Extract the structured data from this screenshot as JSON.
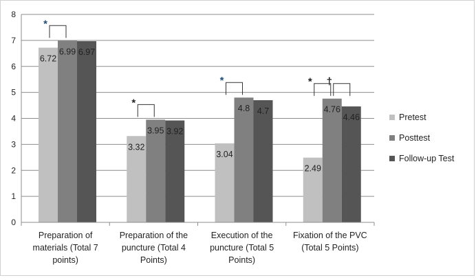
{
  "chart_data": {
    "type": "bar",
    "categories": [
      [
        "Preparation of",
        "materials (Total 7",
        "points)"
      ],
      [
        "Preparation of the",
        "puncture (Total 4",
        "Points)"
      ],
      [
        "Execution of the",
        "puncture (Total 5",
        "Points)"
      ],
      [
        "Fixation of the PVC",
        "(Total 5 Points)"
      ]
    ],
    "series": [
      {
        "name": "Pretest",
        "values": [
          6.72,
          3.32,
          3.04,
          2.49
        ],
        "labels": [
          "6.72",
          "3.32",
          "3.04",
          "2.49"
        ],
        "color": "#c0c0c0"
      },
      {
        "name": "Posttest",
        "values": [
          6.99,
          3.95,
          4.8,
          4.76
        ],
        "labels": [
          "6.99",
          "3.95",
          "4.8",
          "4.76"
        ],
        "color": "#808080"
      },
      {
        "name": "Follow-up Test",
        "values": [
          6.97,
          3.92,
          4.7,
          4.46
        ],
        "labels": [
          "6.97",
          "3.92",
          "4.7",
          "4.46"
        ],
        "color": "#555555"
      }
    ],
    "ylim": [
      0,
      8
    ],
    "yticks": [
      "0",
      "1",
      "2",
      "3",
      "4",
      "5",
      "6",
      "7",
      "8"
    ],
    "grid": true,
    "legend_position": "right",
    "annotations": [
      {
        "category": 0,
        "from": 0,
        "to": 1,
        "symbol": "*",
        "symbol_color": "#1f4e79"
      },
      {
        "category": 1,
        "from": 0,
        "to": 1,
        "symbol": "*",
        "symbol_color": "#222222"
      },
      {
        "category": 2,
        "from": 0,
        "to": 1,
        "symbol": "*",
        "symbol_color": "#1f4e79"
      },
      {
        "category": 3,
        "from": 0,
        "to": 1,
        "symbol": "*",
        "symbol_color": "#222222"
      },
      {
        "category": 3,
        "from": 1,
        "to": 2,
        "symbol": "†",
        "symbol_color": "#222222"
      }
    ]
  }
}
